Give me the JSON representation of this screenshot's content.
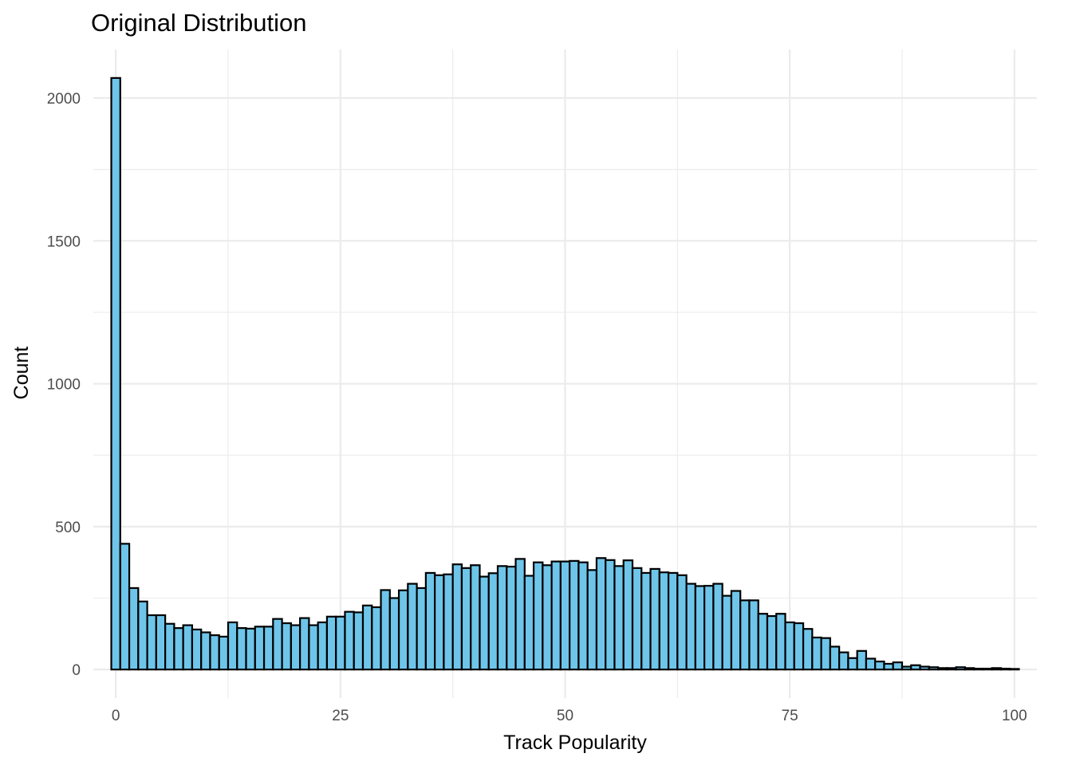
{
  "chart_data": {
    "type": "bar",
    "title": "Original Distribution",
    "xlabel": "Track Popularity",
    "ylabel": "Count",
    "fill_color": "#6EC5E9",
    "outline_color": "#000000",
    "grid": true,
    "xlim": [
      -2.5,
      102.5
    ],
    "ylim": [
      -100,
      2170
    ],
    "x_ticks": [
      0,
      25,
      50,
      75,
      100
    ],
    "y_ticks": [
      0,
      500,
      1000,
      1500,
      2000
    ],
    "bin_width": 1,
    "x": [
      0,
      1,
      2,
      3,
      4,
      5,
      6,
      7,
      8,
      9,
      10,
      11,
      12,
      13,
      14,
      15,
      16,
      17,
      18,
      19,
      20,
      21,
      22,
      23,
      24,
      25,
      26,
      27,
      28,
      29,
      30,
      31,
      32,
      33,
      34,
      35,
      36,
      37,
      38,
      39,
      40,
      41,
      42,
      43,
      44,
      45,
      46,
      47,
      48,
      49,
      50,
      51,
      52,
      53,
      54,
      55,
      56,
      57,
      58,
      59,
      60,
      61,
      62,
      63,
      64,
      65,
      66,
      67,
      68,
      69,
      70,
      71,
      72,
      73,
      74,
      75,
      76,
      77,
      78,
      79,
      80,
      81,
      82,
      83,
      84,
      85,
      86,
      87,
      88,
      89,
      90,
      91,
      92,
      93,
      94,
      95,
      96,
      97,
      98,
      99,
      100
    ],
    "values": [
      2070,
      440,
      285,
      238,
      190,
      190,
      160,
      145,
      155,
      140,
      130,
      120,
      115,
      165,
      145,
      143,
      150,
      150,
      177,
      162,
      155,
      180,
      155,
      165,
      185,
      185,
      202,
      200,
      224,
      218,
      278,
      250,
      277,
      300,
      285,
      338,
      330,
      333,
      368,
      355,
      365,
      325,
      337,
      362,
      360,
      387,
      328,
      375,
      365,
      378,
      378,
      380,
      375,
      348,
      390,
      383,
      362,
      382,
      355,
      338,
      352,
      340,
      338,
      330,
      300,
      292,
      293,
      300,
      258,
      275,
      242,
      242,
      195,
      187,
      195,
      165,
      162,
      142,
      112,
      110,
      80,
      60,
      40,
      65,
      38,
      28,
      20,
      25,
      10,
      15,
      10,
      8,
      5,
      5,
      8,
      5,
      3,
      3,
      5,
      3,
      2
    ]
  }
}
